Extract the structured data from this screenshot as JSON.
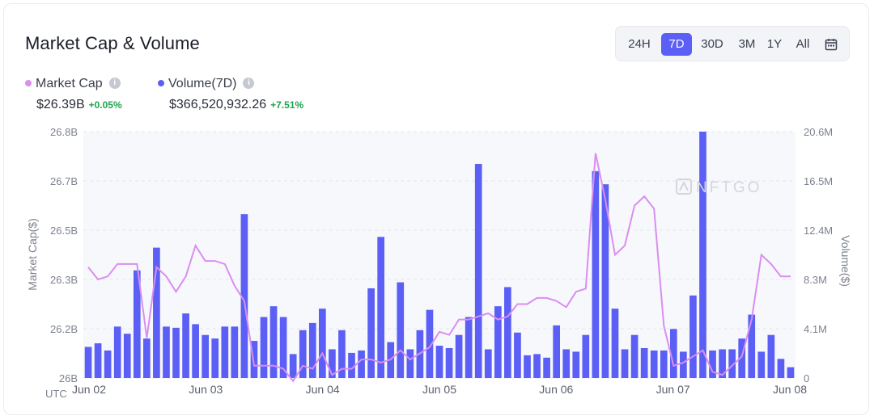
{
  "title": "Market Cap & Volume",
  "range_buttons": [
    "24H",
    "7D",
    "30D",
    "3M",
    "1Y",
    "All"
  ],
  "active_range": "7D",
  "legend": {
    "market_cap": {
      "label": "Market Cap",
      "value": "$26.39B",
      "change": "+0.05%",
      "color": "#d98ef0"
    },
    "volume": {
      "label": "Volume(7D)",
      "value": "$366,520,932.26",
      "change": "+7.51%",
      "color": "#5b5ff5"
    }
  },
  "watermark": "NFTGO",
  "chart_data": {
    "type": "bar",
    "xlabel": "UTC",
    "x_ticks": [
      "Jun 02",
      "Jun 03",
      "Jun 04",
      "Jun 05",
      "Jun 06",
      "Jun 07",
      "Jun 08"
    ],
    "y_left": {
      "label": "Market Cap($)",
      "ticks": [
        "26B",
        "26.2B",
        "26.3B",
        "26.5B",
        "26.7B",
        "26.8B"
      ],
      "ylim": [
        26.0,
        26.8
      ]
    },
    "y_right": {
      "label": "Volume($)",
      "ticks": [
        "0",
        "4.1M",
        "8.3M",
        "12.4M",
        "16.5M",
        "20.6M"
      ],
      "ylim": [
        0,
        20.6
      ]
    },
    "grid": true,
    "series": [
      {
        "name": "Volume(7D)",
        "type": "bar",
        "unit": "M",
        "values": [
          2.6,
          2.9,
          2.3,
          4.3,
          3.7,
          9.0,
          3.3,
          10.9,
          4.3,
          4.2,
          5.4,
          4.5,
          3.6,
          3.3,
          4.3,
          4.3,
          13.7,
          3.1,
          5.1,
          6.0,
          5.1,
          2.0,
          4.0,
          4.6,
          5.8,
          2.4,
          4.0,
          2.1,
          2.3,
          7.5,
          11.8,
          3.0,
          8.0,
          2.4,
          4.0,
          5.7,
          2.7,
          2.5,
          3.6,
          5.1,
          17.9,
          2.4,
          6.0,
          7.6,
          3.8,
          1.9,
          2.0,
          1.7,
          4.4,
          2.4,
          2.2,
          3.6,
          17.3,
          16.2,
          5.8,
          2.4,
          3.6,
          2.5,
          2.3,
          2.3,
          4.1,
          2.2,
          6.9,
          20.6,
          2.3,
          2.4,
          2.4,
          3.3,
          5.3,
          2.2,
          3.6,
          1.6,
          0.9
        ]
      },
      {
        "name": "Market Cap",
        "type": "line",
        "unit": "B",
        "values": [
          26.36,
          26.32,
          26.33,
          26.37,
          26.37,
          26.37,
          26.13,
          26.36,
          26.33,
          26.28,
          26.33,
          26.43,
          26.38,
          26.38,
          26.37,
          26.3,
          26.25,
          26.04,
          26.04,
          26.04,
          26.03,
          25.99,
          26.04,
          26.03,
          26.08,
          26.01,
          26.03,
          26.03,
          26.06,
          26.06,
          26.05,
          26.06,
          26.09,
          26.06,
          26.08,
          26.1,
          26.15,
          26.14,
          26.19,
          26.19,
          26.2,
          26.21,
          26.19,
          26.2,
          26.24,
          26.24,
          26.26,
          26.26,
          26.25,
          26.23,
          26.28,
          26.29,
          26.73,
          26.58,
          26.4,
          26.43,
          26.56,
          26.59,
          26.55,
          26.17,
          26.04,
          26.05,
          26.07,
          26.09,
          26.02,
          26.01,
          26.04,
          26.07,
          26.19,
          26.4,
          26.37,
          26.33,
          26.33
        ]
      }
    ]
  }
}
